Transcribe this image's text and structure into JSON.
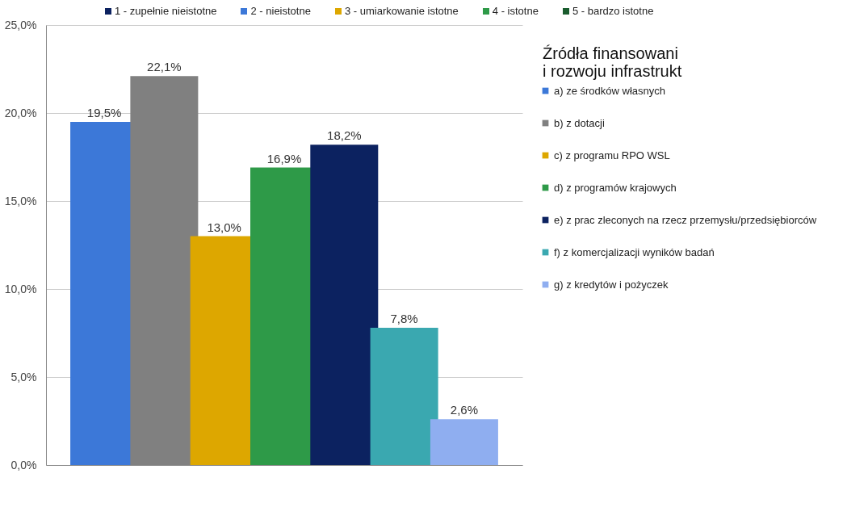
{
  "chart_data": {
    "type": "bar",
    "title": "Źródła finansowani\ni rozwoju infrastrukt",
    "categories": [
      null,
      null,
      null,
      null,
      null,
      null,
      null
    ],
    "series": [
      {
        "name": "a) ze środków własnych",
        "color": "#3c78d8",
        "values": [
          19.5,
          null,
          null,
          null,
          null,
          null,
          null
        ],
        "value_labels": [
          "19,5%",
          null,
          null,
          null,
          null,
          null,
          null
        ]
      },
      {
        "name": "b) z dotacji",
        "color": "#808080",
        "values": [
          null,
          22.1,
          null,
          null,
          null,
          null,
          null
        ],
        "value_labels": [
          null,
          "22,1%",
          null,
          null,
          null,
          null,
          null
        ]
      },
      {
        "name": "c) z programu RPO WSL",
        "color": "#dda700",
        "values": [
          null,
          null,
          13.0,
          null,
          null,
          null,
          null
        ],
        "value_labels": [
          null,
          null,
          "13,0%",
          null,
          null,
          null,
          null
        ]
      },
      {
        "name": "d) z programów krajowych",
        "color": "#2e9a48",
        "values": [
          null,
          null,
          null,
          16.9,
          null,
          null,
          null
        ],
        "value_labels": [
          null,
          null,
          null,
          "16,9%",
          null,
          null,
          null
        ]
      },
      {
        "name": "e) z prac zleconych na rzecz przemysłu/przedsiębiorców",
        "color": "#0c2260",
        "values": [
          null,
          null,
          null,
          null,
          18.2,
          null,
          null
        ],
        "value_labels": [
          null,
          null,
          null,
          null,
          "18,2%",
          null,
          null
        ]
      },
      {
        "name": "f) z komercjalizacji wyników badań",
        "color": "#3aa8b0",
        "values": [
          null,
          null,
          null,
          null,
          null,
          7.8,
          null
        ],
        "value_labels": [
          null,
          null,
          null,
          null,
          null,
          "7,8%",
          null
        ]
      },
      {
        "name": "g) z kredytów i pożyczek",
        "color": "#8faef0",
        "values": [
          null,
          null,
          null,
          null,
          null,
          null,
          2.6
        ],
        "value_labels": [
          null,
          null,
          null,
          null,
          null,
          null,
          "2,6%"
        ]
      }
    ],
    "ylim": [
      0,
      25
    ],
    "yticks": [
      {
        "value": 0,
        "label": "0,0%"
      },
      {
        "value": 5,
        "label": "5,0%"
      },
      {
        "value": 10,
        "label": "10,0%"
      },
      {
        "value": 15,
        "label": "15,0%"
      },
      {
        "value": 20,
        "label": "20,0%"
      },
      {
        "value": 25,
        "label": "25,0%"
      }
    ],
    "grid": "y",
    "legend": "right",
    "tick_labels": "y",
    "annotations": [
      "1 - zupełnie nieistotne",
      "2 - nieistotne",
      "3 - umiarkowanie istotne",
      "4 - istotne",
      "5 - bardzo istotne"
    ]
  }
}
